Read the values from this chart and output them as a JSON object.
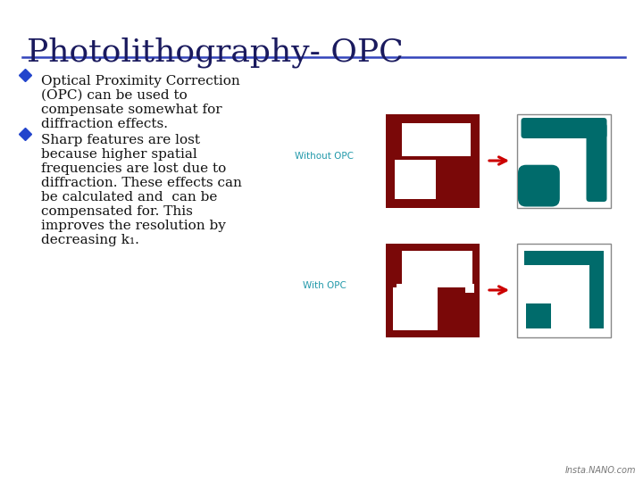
{
  "title": "Photolithography- OPC",
  "title_color": "#1a1a5e",
  "title_fontsize": 26,
  "line_color": "#3344bb",
  "bg_color": "#ffffff",
  "bullet_color": "#2244cc",
  "text_color": "#111111",
  "label_color": "#2299aa",
  "arrow_color": "#cc0000",
  "dark_red": "#7a0808",
  "teal": "#006b6b",
  "bullet1_line1": "Optical Proximity Correction",
  "bullet1_line2": "(OPC) can be used to",
  "bullet1_line3": "compensate somewhat for",
  "bullet1_line4": "diffraction effects.",
  "bullet2_line1": "Sharp features are lost",
  "bullet2_line2": "because higher spatial",
  "bullet2_line3": "frequencies are lost due to",
  "bullet2_line4": "diffraction. These effects can",
  "bullet2_line5": "be calculated and  can be",
  "bullet2_line6": "compensated for. This",
  "bullet2_line7": "improves the resolution by",
  "bullet2_line8": "decreasing k₁.",
  "label_without": "Without OPC",
  "label_with": "With OPC",
  "watermark": "Insta.NANO.com"
}
